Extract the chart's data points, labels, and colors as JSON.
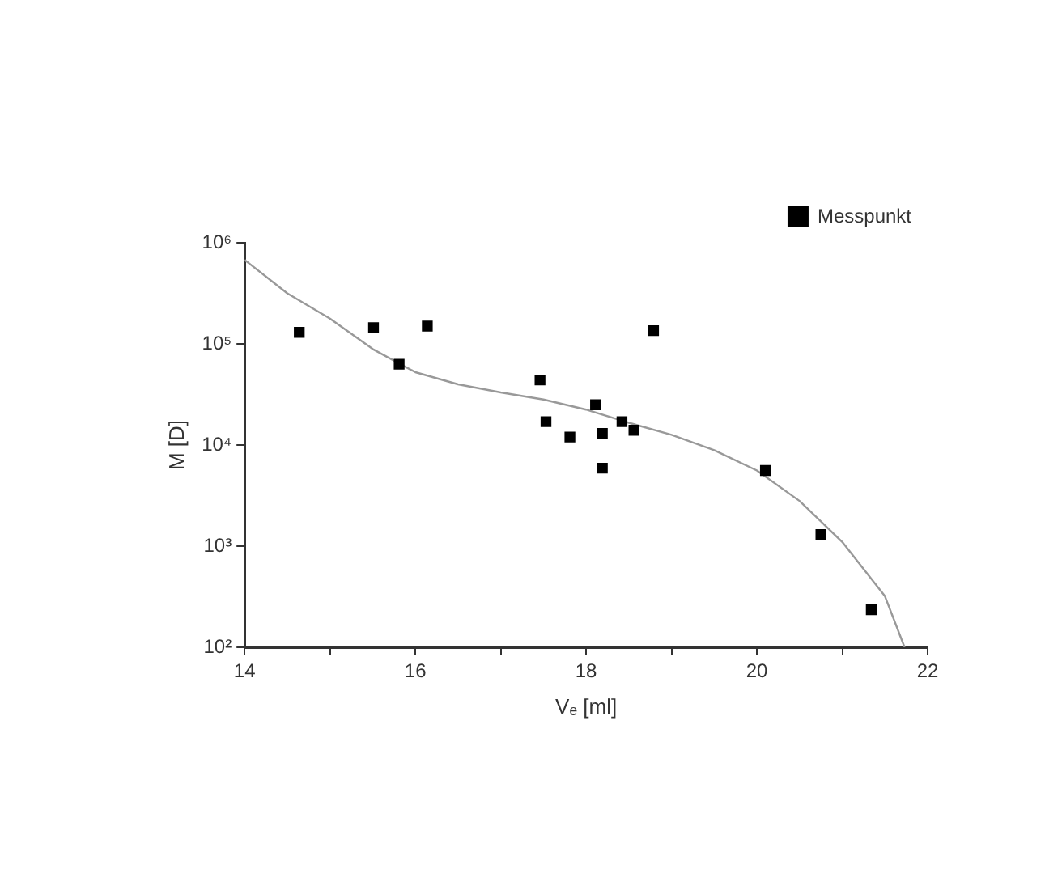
{
  "chart_data": {
    "type": "scatter",
    "xlabel": "Vₑ [ml]",
    "ylabel": "M [D]",
    "log": "y",
    "grid": false,
    "legend": "top right",
    "marker": "square",
    "xlim": [
      14,
      22
    ],
    "xticks": [
      14,
      {
        "value": 15,
        "label": null
      },
      16,
      {
        "value": 17,
        "label": null
      },
      18,
      {
        "value": 19,
        "label": null
      },
      20,
      {
        "value": 21,
        "label": null
      },
      22
    ],
    "ylim": [
      100,
      1000000
    ],
    "yticks": [
      {
        "value": 100,
        "label": "10²"
      },
      {
        "value": 1000,
        "label": "10³"
      },
      {
        "value": 10000,
        "label": "10⁴"
      },
      {
        "value": 100000,
        "label": "10⁵"
      },
      {
        "value": 1000000,
        "label": "10⁶"
      }
    ],
    "series": [
      {
        "name": "Messpunkt",
        "type": "scatter",
        "color": "#000000",
        "x": [
          14.64,
          15.51,
          15.81,
          16.14,
          17.46,
          17.53,
          17.81,
          18.11,
          18.19,
          18.19,
          18.42,
          18.56,
          18.79,
          20.1,
          20.75,
          21.34
        ],
        "values": [
          130000,
          145000,
          63000,
          150000,
          44000,
          17000,
          12000,
          25000,
          13000,
          5900,
          17000,
          14000,
          135000,
          5600,
          1300,
          235
        ]
      },
      {
        "type": "line",
        "color": "#999999",
        "line_style": "solid",
        "marker": "none",
        "x": [
          14,
          14.5,
          15,
          15.5,
          16,
          16.5,
          17,
          17.5,
          18,
          18.5,
          19,
          19.5,
          20,
          20.5,
          21,
          21.5,
          21.73
        ],
        "values": [
          676000,
          316000,
          178000,
          89000,
          52500,
          39800,
          33100,
          28200,
          22400,
          16600,
          12600,
          8900,
          5600,
          2800,
          1100,
          320,
          100
        ]
      }
    ]
  }
}
